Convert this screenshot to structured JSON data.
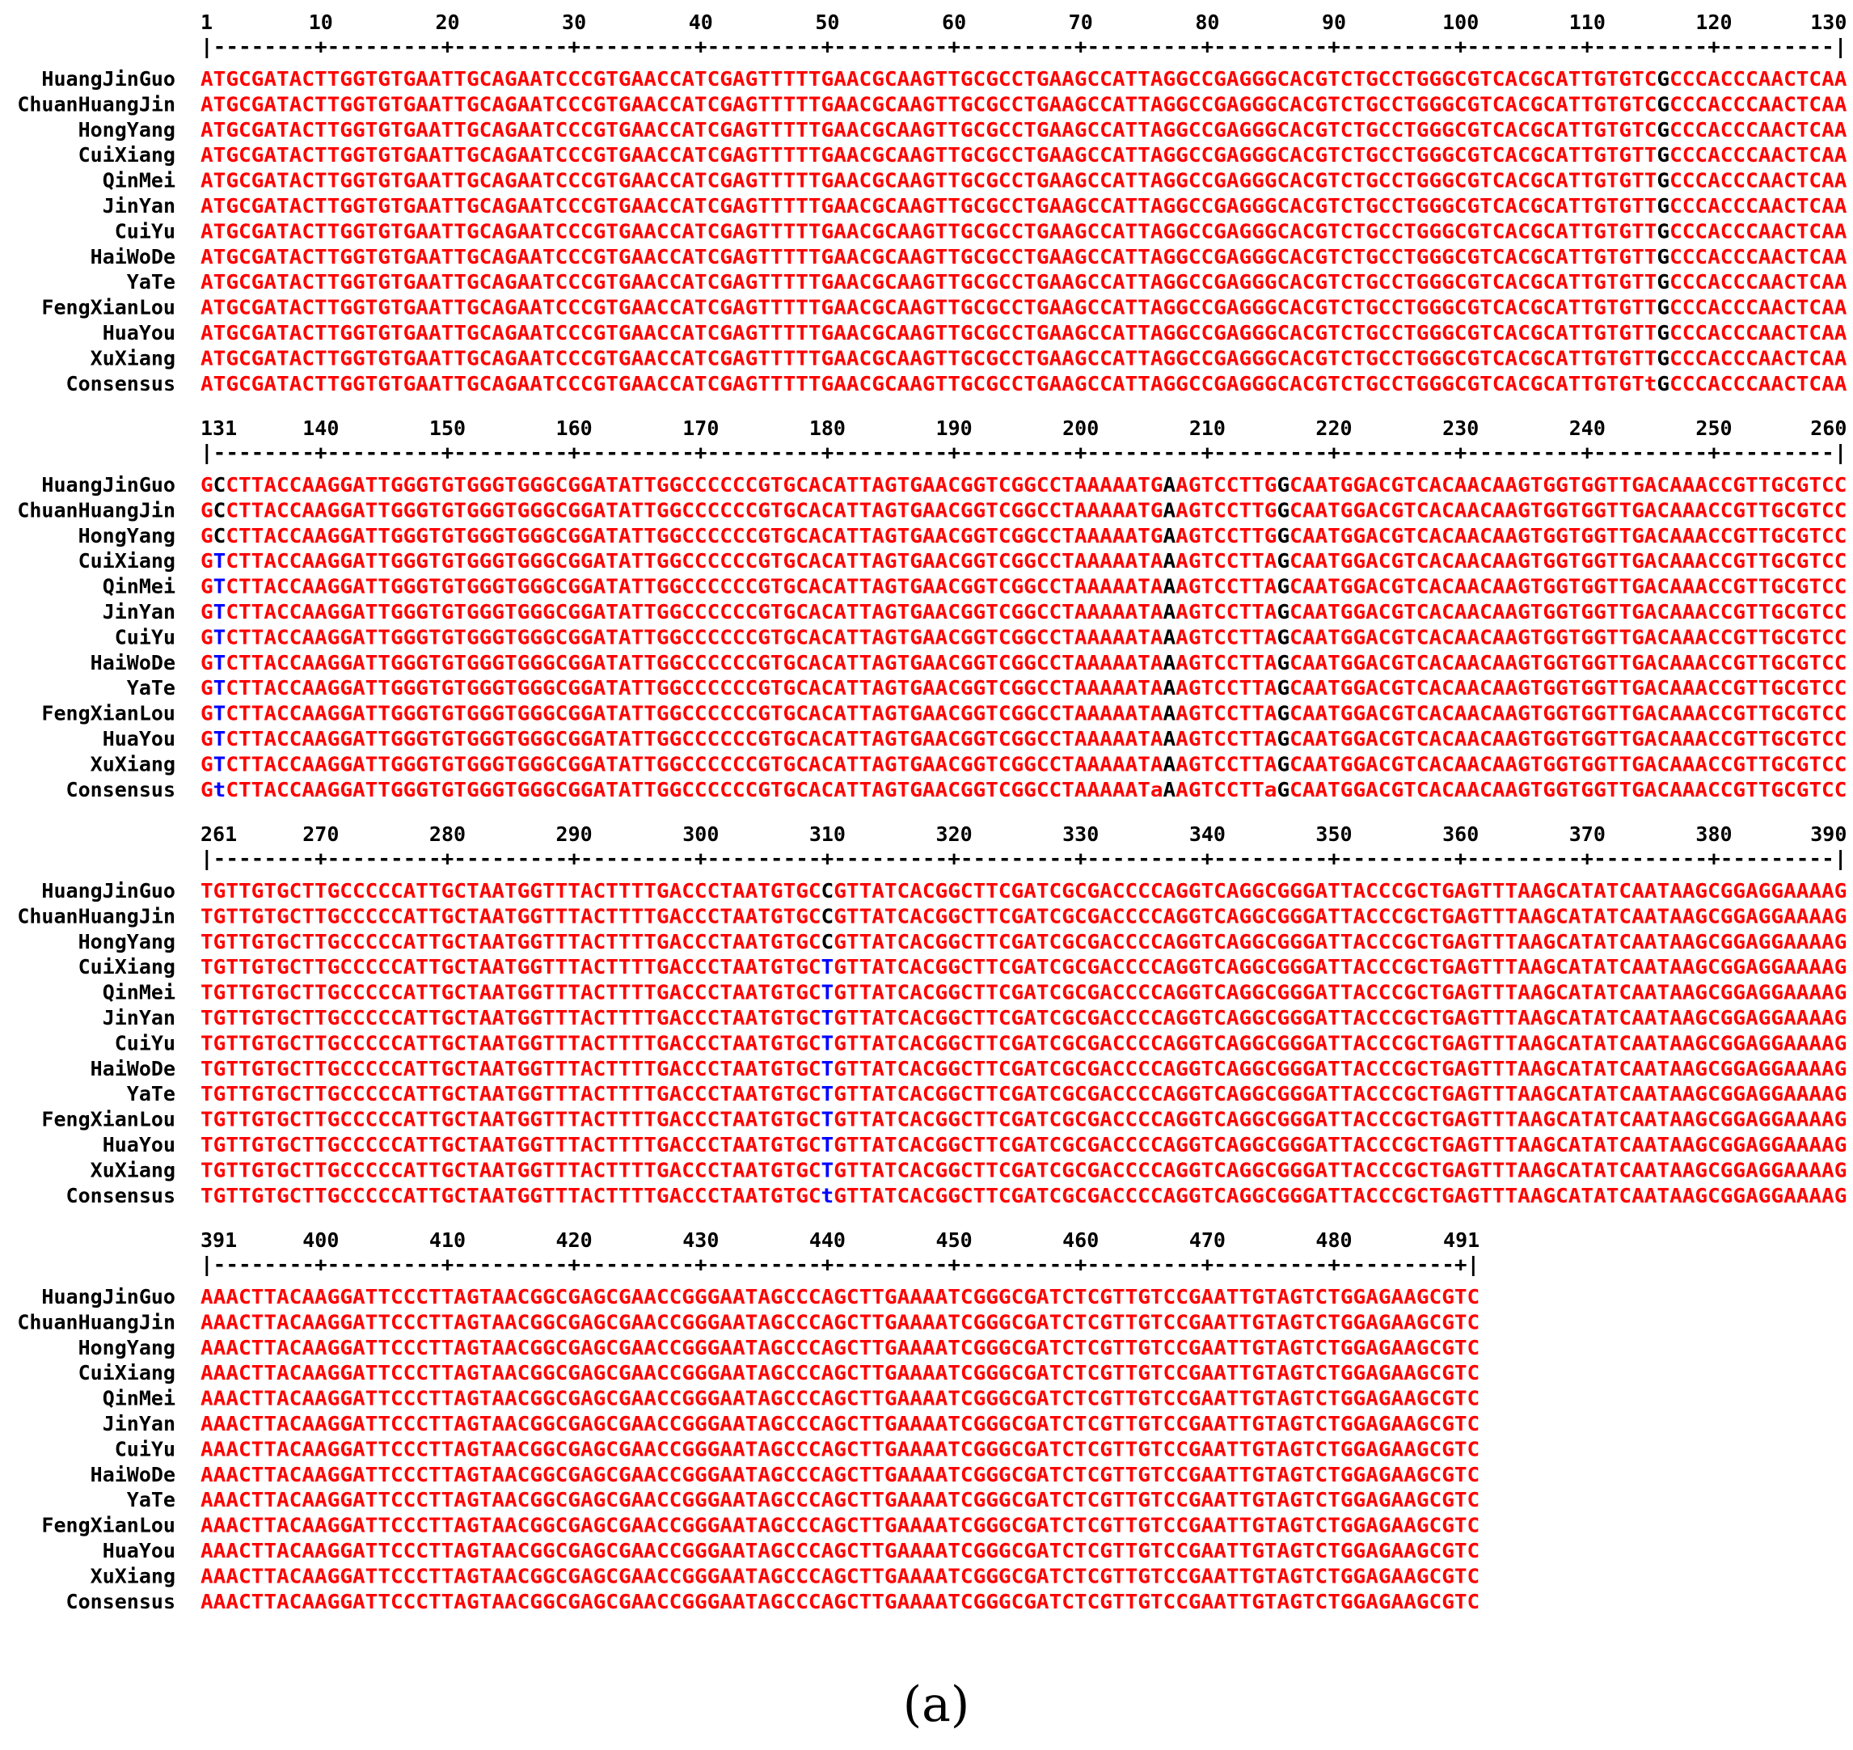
{
  "figure_label": "(a)",
  "colors": {
    "consensus_high": "#ff0000",
    "consensus_low": "#0000ff",
    "variant_neutral": "#000000"
  },
  "sequence_names": [
    "HuangJinGuo",
    "ChuanHuangJin",
    "HongYang",
    "CuiXiang",
    "QinMei",
    "JinYan",
    "CuiYu",
    "HaiWoDe",
    "YaTe",
    "FengXianLou",
    "HuaYou",
    "XuXiang",
    "Consensus"
  ],
  "blocks": [
    {
      "ruler_labels": [
        "1",
        "10",
        "20",
        "30",
        "40",
        "50",
        "60",
        "70",
        "80",
        "90",
        "100",
        "110",
        "120",
        "130"
      ],
      "ruler_line": "|--------+---------+---------+---------+---------+---------+---------+---------+---------+---------+---------+---------+---------|",
      "common": "ATGCGATACTTGGTGTGAATTGCAGAATCCCGTGAACCATCGAGTTTTTGAACGCAAGTTGCGCCTGAAGCCATTAGGCCGAGGGCACGTCTGCCTGGGCGTCACGCATTGTGTCGCCCACCCAACTCAA",
      "variant_positions": [
        115
      ],
      "rows": [
        {
          "name": "HuangJinGuo",
          "seq": "ATGCGATACTTGGTGTGAATTGCAGAATCCCGTGAACCATCGAGTTTTTGAACGCAAGTTGCGCCTGAAGCCATTAGGCCGAGGGCACGTCTGCCTGGGCGTCACGCATTGTGTCGCCCACCCAACTCAA"
        },
        {
          "name": "ChuanHuangJin",
          "seq": "ATGCGATACTTGGTGTGAATTGCAGAATCCCGTGAACCATCGAGTTTTTGAACGCAAGTTGCGCCTGAAGCCATTAGGCCGAGGGCACGTCTGCCTGGGCGTCACGCATTGTGTCGCCCACCCAACTCAA"
        },
        {
          "name": "HongYang",
          "seq": "ATGCGATACTTGGTGTGAATTGCAGAATCCCGTGAACCATCGAGTTTTTGAACGCAAGTTGCGCCTGAAGCCATTAGGCCGAGGGCACGTCTGCCTGGGCGTCACGCATTGTGTCGCCCACCCAACTCAA"
        },
        {
          "name": "CuiXiang",
          "seq": "ATGCGATACTTGGTGTGAATTGCAGAATCCCGTGAACCATCGAGTTTTTGAACGCAAGTTGCGCCTGAAGCCATTAGGCCGAGGGCACGTCTGCCTGGGCGTCACGCATTGTGTTGCCCACCCAACTCAA"
        },
        {
          "name": "QinMei",
          "seq": "ATGCGATACTTGGTGTGAATTGCAGAATCCCGTGAACCATCGAGTTTTTGAACGCAAGTTGCGCCTGAAGCCATTAGGCCGAGGGCACGTCTGCCTGGGCGTCACGCATTGTGTTGCCCACCCAACTCAA"
        },
        {
          "name": "JinYan",
          "seq": "ATGCGATACTTGGTGTGAATTGCAGAATCCCGTGAACCATCGAGTTTTTGAACGCAAGTTGCGCCTGAAGCCATTAGGCCGAGGGCACGTCTGCCTGGGCGTCACGCATTGTGTTGCCCACCCAACTCAA"
        },
        {
          "name": "CuiYu",
          "seq": "ATGCGATACTTGGTGTGAATTGCAGAATCCCGTGAACCATCGAGTTTTTGAACGCAAGTTGCGCCTGAAGCCATTAGGCCGAGGGCACGTCTGCCTGGGCGTCACGCATTGTGTTGCCCACCCAACTCAA"
        },
        {
          "name": "HaiWoDe",
          "seq": "ATGCGATACTTGGTGTGAATTGCAGAATCCCGTGAACCATCGAGTTTTTGAACGCAAGTTGCGCCTGAAGCCATTAGGCCGAGGGCACGTCTGCCTGGGCGTCACGCATTGTGTTGCCCACCCAACTCAA"
        },
        {
          "name": "YaTe",
          "seq": "ATGCGATACTTGGTGTGAATTGCAGAATCCCGTGAACCATCGAGTTTTTGAACGCAAGTTGCGCCTGAAGCCATTAGGCCGAGGGCACGTCTGCCTGGGCGTCACGCATTGTGTTGCCCACCCAACTCAA"
        },
        {
          "name": "FengXianLou",
          "seq": "ATGCGATACTTGGTGTGAATTGCAGAATCCCGTGAACCATCGAGTTTTTGAACGCAAGTTGCGCCTGAAGCCATTAGGCCGAGGGCACGTCTGCCTGGGCGTCACGCATTGTGTTGCCCACCCAACTCAA"
        },
        {
          "name": "HuaYou",
          "seq": "ATGCGATACTTGGTGTGAATTGCAGAATCCCGTGAACCATCGAGTTTTTGAACGCAAGTTGCGCCTGAAGCCATTAGGCCGAGGGCACGTCTGCCTGGGCGTCACGCATTGTGTTGCCCACCCAACTCAA"
        },
        {
          "name": "XuXiang",
          "seq": "ATGCGATACTTGGTGTGAATTGCAGAATCCCGTGAACCATCGAGTTTTTGAACGCAAGTTGCGCCTGAAGCCATTAGGCCGAGGGCACGTCTGCCTGGGCGTCACGCATTGTGTTGCCCACCCAACTCAA"
        },
        {
          "name": "Consensus",
          "seq": "ATGCGATACTTGGTGTGAATTGCAGAATCCCGTGAACCATCGAGTTTTTGAACGCAAGTTGCGCCTGAAGCCATTAGGCCGAGGGCACGTCTGCCTGGGCGTCACGCATTGTGTtGCCCACCCAACTCAA"
        }
      ]
    },
    {
      "ruler_labels": [
        "131",
        "140",
        "150",
        "160",
        "170",
        "180",
        "190",
        "200",
        "210",
        "220",
        "230",
        "240",
        "250",
        "260"
      ],
      "ruler_line": "|--------+---------+---------+---------+---------+---------+---------+---------+---------+---------+---------+---------+---------|",
      "common": "GCCTTACCAAGGATTGGGTGTGGGTGGGCGGATATTGGCCCCCCGTGCACATTAGTGAACGGTCGGCCTAAAAATGAAGTCCTTGGCAATGGACGTCACAACAAGTGGTGGTTGACAAACCGTTGCGTCC",
      "variant_positions": [
        1,
        76,
        85
      ],
      "rows": [
        {
          "name": "HuangJinGuo",
          "seq": "GCCTTACCAAGGATTGGGTGTGGGTGGGCGGATATTGGCCCCCCGTGCACATTAGTGAACGGTCGGCCTAAAAATGAAGTCCTTGGCAATGGACGTCACAACAAGTGGTGGTTGACAAACCGTTGCGTCC"
        },
        {
          "name": "ChuanHuangJin",
          "seq": "GCCTTACCAAGGATTGGGTGTGGGTGGGCGGATATTGGCCCCCCGTGCACATTAGTGAACGGTCGGCCTAAAAATGAAGTCCTTGGCAATGGACGTCACAACAAGTGGTGGTTGACAAACCGTTGCGTCC"
        },
        {
          "name": "HongYang",
          "seq": "GCCTTACCAAGGATTGGGTGTGGGTGGGCGGATATTGGCCCCCCGTGCACATTAGTGAACGGTCGGCCTAAAAATGAAGTCCTTGGCAATGGACGTCACAACAAGTGGTGGTTGACAAACCGTTGCGTCC"
        },
        {
          "name": "CuiXiang",
          "seq": "GTCTTACCAAGGATTGGGTGTGGGTGGGCGGATATTGGCCCCCCGTGCACATTAGTGAACGGTCGGCCTAAAAATAAAGTCCTTAGCAATGGACGTCACAACAAGTGGTGGTTGACAAACCGTTGCGTCC"
        },
        {
          "name": "QinMei",
          "seq": "GTCTTACCAAGGATTGGGTGTGGGTGGGCGGATATTGGCCCCCCGTGCACATTAGTGAACGGTCGGCCTAAAAATAAAGTCCTTAGCAATGGACGTCACAACAAGTGGTGGTTGACAAACCGTTGCGTCC"
        },
        {
          "name": "JinYan",
          "seq": "GTCTTACCAAGGATTGGGTGTGGGTGGGCGGATATTGGCCCCCCGTGCACATTAGTGAACGGTCGGCCTAAAAATAAAGTCCTTAGCAATGGACGTCACAACAAGTGGTGGTTGACAAACCGTTGCGTCC"
        },
        {
          "name": "CuiYu",
          "seq": "GTCTTACCAAGGATTGGGTGTGGGTGGGCGGATATTGGCCCCCCGTGCACATTAGTGAACGGTCGGCCTAAAAATAAAGTCCTTAGCAATGGACGTCACAACAAGTGGTGGTTGACAAACCGTTGCGTCC"
        },
        {
          "name": "HaiWoDe",
          "seq": "GTCTTACCAAGGATTGGGTGTGGGTGGGCGGATATTGGCCCCCCGTGCACATTAGTGAACGGTCGGCCTAAAAATAAAGTCCTTAGCAATGGACGTCACAACAAGTGGTGGTTGACAAACCGTTGCGTCC"
        },
        {
          "name": "YaTe",
          "seq": "GTCTTACCAAGGATTGGGTGTGGGTGGGCGGATATTGGCCCCCCGTGCACATTAGTGAACGGTCGGCCTAAAAATAAAGTCCTTAGCAATGGACGTCACAACAAGTGGTGGTTGACAAACCGTTGCGTCC"
        },
        {
          "name": "FengXianLou",
          "seq": "GTCTTACCAAGGATTGGGTGTGGGTGGGCGGATATTGGCCCCCCGTGCACATTAGTGAACGGTCGGCCTAAAAATAAAGTCCTTAGCAATGGACGTCACAACAAGTGGTGGTTGACAAACCGTTGCGTCC"
        },
        {
          "name": "HuaYou",
          "seq": "GTCTTACCAAGGATTGGGTGTGGGTGGGCGGATATTGGCCCCCCGTGCACATTAGTGAACGGTCGGCCTAAAAATAAAGTCCTTAGCAATGGACGTCACAACAAGTGGTGGTTGACAAACCGTTGCGTCC"
        },
        {
          "name": "XuXiang",
          "seq": "GTCTTACCAAGGATTGGGTGTGGGTGGGCGGATATTGGCCCCCCGTGCACATTAGTGAACGGTCGGCCTAAAAATAAAGTCCTTAGCAATGGACGTCACAACAAGTGGTGGTTGACAAACCGTTGCGTCC"
        },
        {
          "name": "Consensus",
          "seq": "GtCTTACCAAGGATTGGGTGTGGGTGGGCGGATATTGGCCCCCCGTGCACATTAGTGAACGGTCGGCCTAAAAATaAAGTCCTTaGCAATGGACGTCACAACAAGTGGTGGTTGACAAACCGTTGCGTCC"
        }
      ]
    },
    {
      "ruler_labels": [
        "261",
        "270",
        "280",
        "290",
        "300",
        "310",
        "320",
        "330",
        "340",
        "350",
        "360",
        "370",
        "380",
        "390"
      ],
      "ruler_line": "|--------+---------+---------+---------+---------+---------+---------+---------+---------+---------+---------+---------+---------|",
      "common": "TGTTGTGCTTGCCCCCATTGCTAATGGTTTACTTTTGACCCTAATGTGCCGTTATCACGGCTTCGATCGCGACCCCAGGTCAGGCGGGATTACCCGCTGAGTTTAAGCATATCAATAAGCGGAGGAAAAG",
      "variant_positions": [
        49
      ],
      "rows": [
        {
          "name": "HuangJinGuo",
          "seq": "TGTTGTGCTTGCCCCCATTGCTAATGGTTTACTTTTGACCCTAATGTGCCGTTATCACGGCTTCGATCGCGACCCCAGGTCAGGCGGGATTACCCGCTGAGTTTAAGCATATCAATAAGCGGAGGAAAAG"
        },
        {
          "name": "ChuanHuangJin",
          "seq": "TGTTGTGCTTGCCCCCATTGCTAATGGTTTACTTTTGACCCTAATGTGCCGTTATCACGGCTTCGATCGCGACCCCAGGTCAGGCGGGATTACCCGCTGAGTTTAAGCATATCAATAAGCGGAGGAAAAG"
        },
        {
          "name": "HongYang",
          "seq": "TGTTGTGCTTGCCCCCATTGCTAATGGTTTACTTTTGACCCTAATGTGCCGTTATCACGGCTTCGATCGCGACCCCAGGTCAGGCGGGATTACCCGCTGAGTTTAAGCATATCAATAAGCGGAGGAAAAG"
        },
        {
          "name": "CuiXiang",
          "seq": "TGTTGTGCTTGCCCCCATTGCTAATGGTTTACTTTTGACCCTAATGTGCTGTTATCACGGCTTCGATCGCGACCCCAGGTCAGGCGGGATTACCCGCTGAGTTTAAGCATATCAATAAGCGGAGGAAAAG"
        },
        {
          "name": "QinMei",
          "seq": "TGTTGTGCTTGCCCCCATTGCTAATGGTTTACTTTTGACCCTAATGTGCTGTTATCACGGCTTCGATCGCGACCCCAGGTCAGGCGGGATTACCCGCTGAGTTTAAGCATATCAATAAGCGGAGGAAAAG"
        },
        {
          "name": "JinYan",
          "seq": "TGTTGTGCTTGCCCCCATTGCTAATGGTTTACTTTTGACCCTAATGTGCTGTTATCACGGCTTCGATCGCGACCCCAGGTCAGGCGGGATTACCCGCTGAGTTTAAGCATATCAATAAGCGGAGGAAAAG"
        },
        {
          "name": "CuiYu",
          "seq": "TGTTGTGCTTGCCCCCATTGCTAATGGTTTACTTTTGACCCTAATGTGCTGTTATCACGGCTTCGATCGCGACCCCAGGTCAGGCGGGATTACCCGCTGAGTTTAAGCATATCAATAAGCGGAGGAAAAG"
        },
        {
          "name": "HaiWoDe",
          "seq": "TGTTGTGCTTGCCCCCATTGCTAATGGTTTACTTTTGACCCTAATGTGCTGTTATCACGGCTTCGATCGCGACCCCAGGTCAGGCGGGATTACCCGCTGAGTTTAAGCATATCAATAAGCGGAGGAAAAG"
        },
        {
          "name": "YaTe",
          "seq": "TGTTGTGCTTGCCCCCATTGCTAATGGTTTACTTTTGACCCTAATGTGCTGTTATCACGGCTTCGATCGCGACCCCAGGTCAGGCGGGATTACCCGCTGAGTTTAAGCATATCAATAAGCGGAGGAAAAG"
        },
        {
          "name": "FengXianLou",
          "seq": "TGTTGTGCTTGCCCCCATTGCTAATGGTTTACTTTTGACCCTAATGTGCTGTTATCACGGCTTCGATCGCGACCCCAGGTCAGGCGGGATTACCCGCTGAGTTTAAGCATATCAATAAGCGGAGGAAAAG"
        },
        {
          "name": "HuaYou",
          "seq": "TGTTGTGCTTGCCCCCATTGCTAATGGTTTACTTTTGACCCTAATGTGCTGTTATCACGGCTTCGATCGCGACCCCAGGTCAGGCGGGATTACCCGCTGAGTTTAAGCATATCAATAAGCGGAGGAAAAG"
        },
        {
          "name": "XuXiang",
          "seq": "TGTTGTGCTTGCCCCCATTGCTAATGGTTTACTTTTGACCCTAATGTGCTGTTATCACGGCTTCGATCGCGACCCCAGGTCAGGCGGGATTACCCGCTGAGTTTAAGCATATCAATAAGCGGAGGAAAAG"
        },
        {
          "name": "Consensus",
          "seq": "TGTTGTGCTTGCCCCCATTGCTAATGGTTTACTTTTGACCCTAATGTGCtGTTATCACGGCTTCGATCGCGACCCCAGGTCAGGCGGGATTACCCGCTGAGTTTAAGCATATCAATAAGCGGAGGAAAAG"
        }
      ]
    },
    {
      "ruler_labels": [
        "391",
        "400",
        "410",
        "420",
        "430",
        "440",
        "450",
        "460",
        "470",
        "480",
        "491"
      ],
      "ruler_line": "|--------+---------+---------+---------+---------+---------+---------+---------+---------+---------+|",
      "common": "AAACTTACAAGGATTCCCTTAGTAACGGCGAGCGAACCGGGAATAGCCCAGCTTGAAAATCGGGCGATCTCGTTGTCCGAATTGTAGTCTGGAGAAGCGTC",
      "variant_positions": [],
      "rows": [
        {
          "name": "HuangJinGuo",
          "seq": "AAACTTACAAGGATTCCCTTAGTAACGGCGAGCGAACCGGGAATAGCCCAGCTTGAAAATCGGGCGATCTCGTTGTCCGAATTGTAGTCTGGAGAAGCGTC"
        },
        {
          "name": "ChuanHuangJin",
          "seq": "AAACTTACAAGGATTCCCTTAGTAACGGCGAGCGAACCGGGAATAGCCCAGCTTGAAAATCGGGCGATCTCGTTGTCCGAATTGTAGTCTGGAGAAGCGTC"
        },
        {
          "name": "HongYang",
          "seq": "AAACTTACAAGGATTCCCTTAGTAACGGCGAGCGAACCGGGAATAGCCCAGCTTGAAAATCGGGCGATCTCGTTGTCCGAATTGTAGTCTGGAGAAGCGTC"
        },
        {
          "name": "CuiXiang",
          "seq": "AAACTTACAAGGATTCCCTTAGTAACGGCGAGCGAACCGGGAATAGCCCAGCTTGAAAATCGGGCGATCTCGTTGTCCGAATTGTAGTCTGGAGAAGCGTC"
        },
        {
          "name": "QinMei",
          "seq": "AAACTTACAAGGATTCCCTTAGTAACGGCGAGCGAACCGGGAATAGCCCAGCTTGAAAATCGGGCGATCTCGTTGTCCGAATTGTAGTCTGGAGAAGCGTC"
        },
        {
          "name": "JinYan",
          "seq": "AAACTTACAAGGATTCCCTTAGTAACGGCGAGCGAACCGGGAATAGCCCAGCTTGAAAATCGGGCGATCTCGTTGTCCGAATTGTAGTCTGGAGAAGCGTC"
        },
        {
          "name": "CuiYu",
          "seq": "AAACTTACAAGGATTCCCTTAGTAACGGCGAGCGAACCGGGAATAGCCCAGCTTGAAAATCGGGCGATCTCGTTGTCCGAATTGTAGTCTGGAGAAGCGTC"
        },
        {
          "name": "HaiWoDe",
          "seq": "AAACTTACAAGGATTCCCTTAGTAACGGCGAGCGAACCGGGAATAGCCCAGCTTGAAAATCGGGCGATCTCGTTGTCCGAATTGTAGTCTGGAGAAGCGTC"
        },
        {
          "name": "YaTe",
          "seq": "AAACTTACAAGGATTCCCTTAGTAACGGCGAGCGAACCGGGAATAGCCCAGCTTGAAAATCGGGCGATCTCGTTGTCCGAATTGTAGTCTGGAGAAGCGTC"
        },
        {
          "name": "FengXianLou",
          "seq": "AAACTTACAAGGATTCCCTTAGTAACGGCGAGCGAACCGGGAATAGCCCAGCTTGAAAATCGGGCGATCTCGTTGTCCGAATTGTAGTCTGGAGAAGCGTC"
        },
        {
          "name": "HuaYou",
          "seq": "AAACTTACAAGGATTCCCTTAGTAACGGCGAGCGAACCGGGAATAGCCCAGCTTGAAAATCGGGCGATCTCGTTGTCCGAATTGTAGTCTGGAGAAGCGTC"
        },
        {
          "name": "XuXiang",
          "seq": "AAACTTACAAGGATTCCCTTAGTAACGGCGAGCGAACCGGGAATAGCCCAGCTTGAAAATCGGGCGATCTCGTTGTCCGAATTGTAGTCTGGAGAAGCGTC"
        },
        {
          "name": "Consensus",
          "seq": "AAACTTACAAGGATTCCCTTAGTAACGGCGAGCGAACCGGGAATAGCCCAGCTTGAAAATCGGGCGATCTCGTTGTCCGAATTGTAGTCTGGAGAAGCGTC"
        }
      ]
    }
  ]
}
